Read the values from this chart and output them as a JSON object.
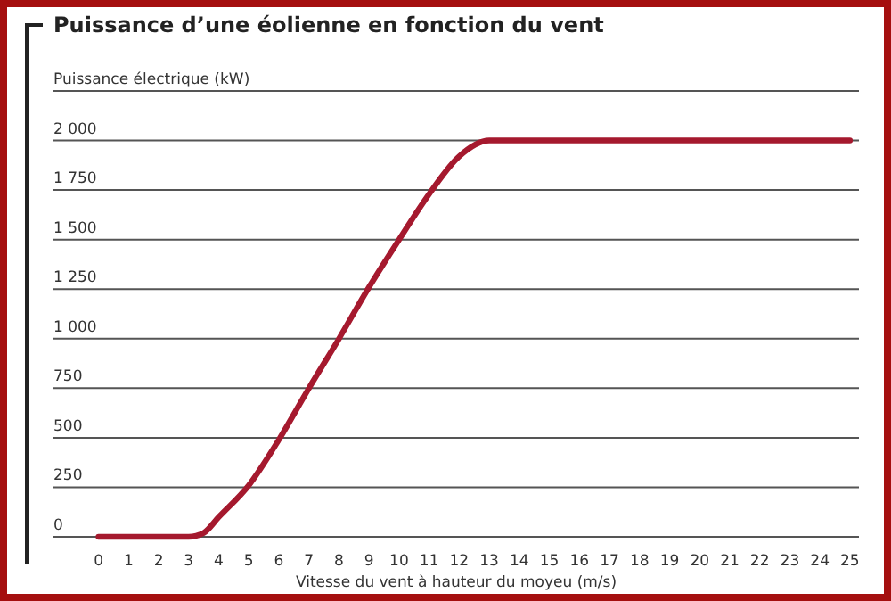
{
  "chart_data": {
    "type": "line",
    "title": "Puissance d’une éolienne en fonction du vent",
    "xlabel": "Vitesse du vent à hauteur du moyeu (m/s)",
    "ylabel": "Puissance électrique (kW)",
    "x": [
      0,
      1,
      2,
      3,
      3.5,
      4,
      5,
      6,
      7,
      8,
      9,
      10,
      11,
      12,
      13,
      14,
      15,
      16,
      17,
      18,
      19,
      20,
      21,
      22,
      23,
      24,
      25
    ],
    "series": [
      {
        "color": "#a5192e",
        "values": [
          0,
          0,
          0,
          0,
          20,
          100,
          260,
          490,
          750,
          1000,
          1260,
          1500,
          1730,
          1920,
          2000,
          2000,
          2000,
          2000,
          2000,
          2000,
          2000,
          2000,
          2000,
          2000,
          2000,
          2000,
          2000
        ]
      }
    ],
    "xlim": [
      -1.5,
      25.3
    ],
    "xticks": [
      0,
      1,
      2,
      3,
      4,
      5,
      6,
      7,
      8,
      9,
      10,
      11,
      12,
      13,
      14,
      15,
      16,
      17,
      18,
      19,
      20,
      21,
      22,
      23,
      24,
      25
    ],
    "ylim": [
      0,
      2250
    ],
    "yticks": [
      0,
      250,
      500,
      750,
      {
        "value": 1000,
        "label": "1 000"
      },
      {
        "value": 1250,
        "label": "1 250"
      },
      {
        "value": 1500,
        "label": "1 500"
      },
      {
        "value": 1750,
        "label": "1 750"
      },
      {
        "value": 2000,
        "label": "2 000"
      },
      {
        "value": 2250,
        "label": null
      }
    ],
    "grid": "y",
    "marker": "none",
    "line_style": "solid"
  }
}
